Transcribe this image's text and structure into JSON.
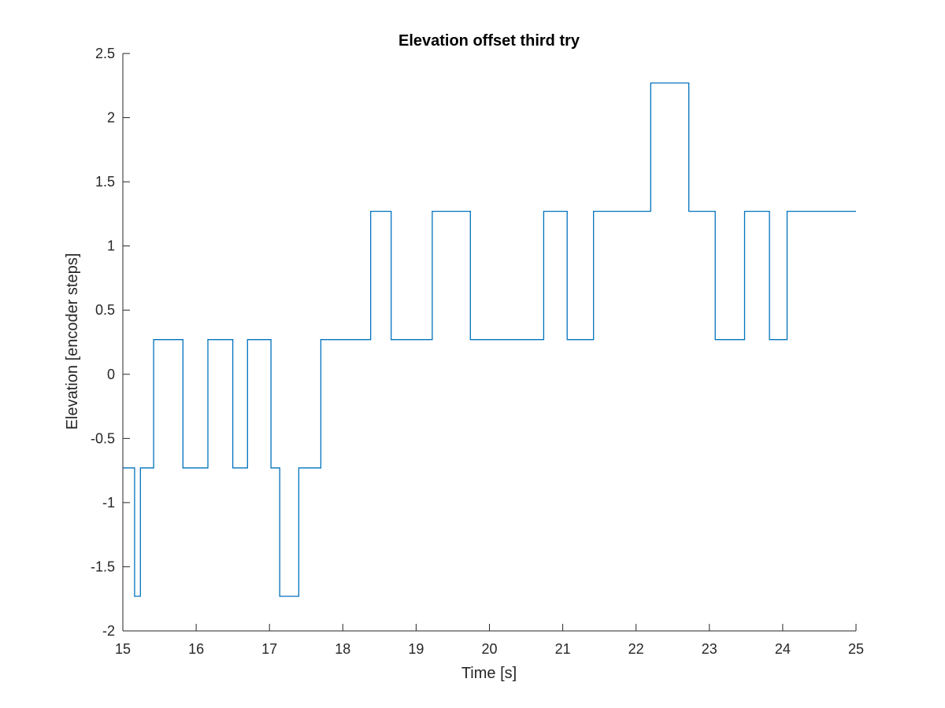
{
  "chart_data": {
    "type": "line",
    "step": true,
    "title": "Elevation offset third try",
    "xlabel": "Time [s]",
    "ylabel": "Elevation [encoder steps]",
    "xlim": [
      15,
      25
    ],
    "ylim": [
      -2,
      2.5
    ],
    "xticks": [
      15,
      16,
      17,
      18,
      19,
      20,
      21,
      22,
      23,
      24,
      25
    ],
    "yticks": [
      -2,
      -1.5,
      -1,
      -0.5,
      0,
      0.5,
      1,
      1.5,
      2,
      2.5
    ],
    "xtick_labels": [
      "15",
      "16",
      "17",
      "18",
      "19",
      "20",
      "21",
      "22",
      "23",
      "24",
      "25"
    ],
    "ytick_labels": [
      "-2",
      "-1.5",
      "-1",
      "-0.5",
      "0",
      "0.5",
      "1",
      "1.5",
      "2",
      "2.5"
    ],
    "grid": false,
    "color": "#0072BD",
    "series": [
      {
        "x": [
          15.0,
          15.16,
          15.24,
          15.42,
          15.82,
          16.16,
          16.5,
          16.7,
          17.02,
          17.14,
          17.4,
          17.7,
          18.38,
          18.66,
          19.22,
          19.74,
          20.74,
          21.06,
          21.42,
          22.2,
          22.72,
          23.08,
          23.48,
          23.82,
          24.06,
          25.0
        ],
        "y": [
          -0.73,
          -1.73,
          -0.73,
          0.27,
          -0.73,
          0.27,
          -0.73,
          0.27,
          -0.73,
          -1.73,
          -0.73,
          0.27,
          1.27,
          0.27,
          1.27,
          0.27,
          1.27,
          0.27,
          1.27,
          2.27,
          1.27,
          0.27,
          1.27,
          0.27,
          1.27,
          1.27
        ]
      }
    ]
  }
}
